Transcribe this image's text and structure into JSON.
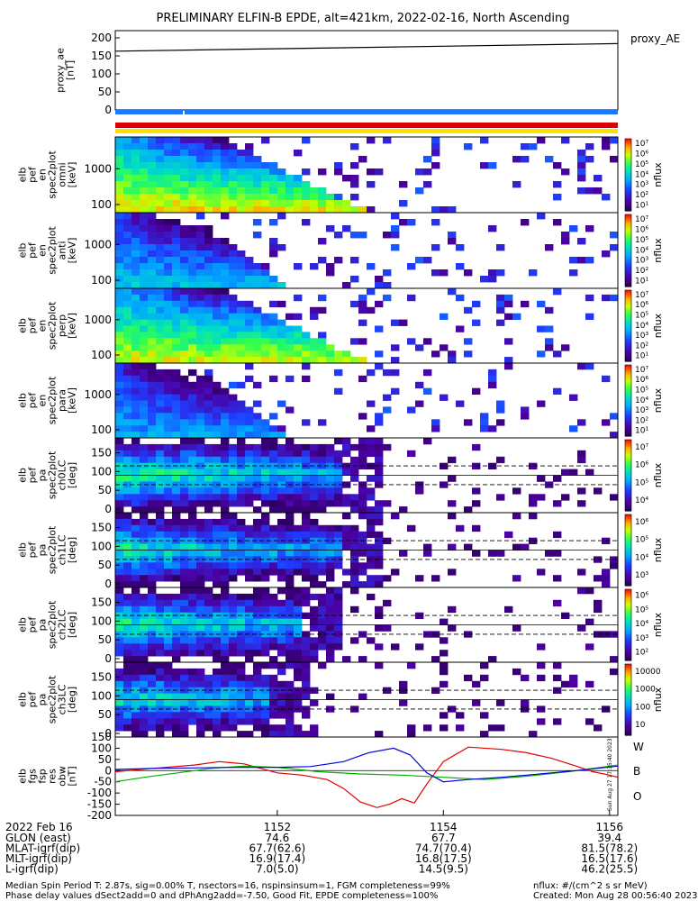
{
  "title": "PRELIMINARY ELFIN-B EPDE, alt=421km, 2022-02-16, North Ascending",
  "chart_data": [
    {
      "type": "line",
      "panel": "proxy_ae",
      "ylabel_lines": [
        "proxy_ae",
        "[nT]"
      ],
      "legend": "proxy_AE",
      "ylim": [
        0,
        200
      ],
      "yticks": [
        "200",
        "150",
        "100",
        "50",
        "0"
      ],
      "series": [
        {
          "name": "proxy_AE",
          "x": [
            0,
            1
          ],
          "values": [
            163,
            184
          ]
        }
      ]
    },
    {
      "type": "heatmap",
      "panel": "elb_pef_en_spec2plot_omni",
      "ylabel_lines": [
        "elb",
        "pef",
        "en",
        "spec2plot",
        "omni",
        "[keV]"
      ],
      "yscale": "log",
      "yticks": [
        "1000",
        "100"
      ],
      "colorbar_label": "nflux",
      "colorbar_ticks": [
        "10⁷",
        "10⁶",
        "10⁵",
        "10⁴",
        "10³",
        "10²",
        "10¹"
      ]
    },
    {
      "type": "heatmap",
      "panel": "elb_pef_en_spec2plot_anti",
      "ylabel_lines": [
        "elb",
        "pef",
        "en",
        "spec2plot",
        "anti",
        "[keV]"
      ],
      "yscale": "log",
      "yticks": [
        "1000",
        "100"
      ],
      "colorbar_label": "nflux",
      "colorbar_ticks": [
        "10⁷",
        "10⁶",
        "10⁵",
        "10⁴",
        "10³",
        "10²",
        "10¹"
      ]
    },
    {
      "type": "heatmap",
      "panel": "elb_pef_en_spec2plot_perp",
      "ylabel_lines": [
        "elb",
        "pef",
        "en",
        "spec2plot",
        "perp",
        "[keV]"
      ],
      "yscale": "log",
      "yticks": [
        "1000",
        "100"
      ],
      "colorbar_label": "nflux",
      "colorbar_ticks": [
        "10⁷",
        "10⁶",
        "10⁵",
        "10⁴",
        "10³",
        "10²",
        "10¹"
      ]
    },
    {
      "type": "heatmap",
      "panel": "elb_pef_en_spec2plot_para",
      "ylabel_lines": [
        "elb",
        "pef",
        "en",
        "spec2plot",
        "para",
        "[keV]"
      ],
      "yscale": "log",
      "yticks": [
        "1000",
        "100"
      ],
      "colorbar_label": "nflux",
      "colorbar_ticks": [
        "10⁷",
        "10⁶",
        "10⁵",
        "10⁴",
        "10³",
        "10²",
        "10¹"
      ]
    },
    {
      "type": "heatmap",
      "panel": "elb_pef_pa_spec2plot_ch0LC",
      "ylabel_lines": [
        "elb",
        "pef",
        "pa",
        "spec2plot",
        "ch0LC",
        "[deg]"
      ],
      "ylim": [
        0,
        180
      ],
      "yticks": [
        "150",
        "100",
        "50",
        "0"
      ],
      "colorbar_label": "nflux",
      "colorbar_ticks": [
        "10⁷",
        "10⁶",
        "10⁵",
        "10⁴"
      ]
    },
    {
      "type": "heatmap",
      "panel": "elb_pef_pa_spec2plot_ch1LC",
      "ylabel_lines": [
        "elb",
        "pef",
        "pa",
        "spec2plot",
        "ch1LC",
        "[deg]"
      ],
      "ylim": [
        0,
        180
      ],
      "yticks": [
        "150",
        "100",
        "50",
        "0"
      ],
      "colorbar_label": "nflux",
      "colorbar_ticks": [
        "10⁶",
        "10⁵",
        "10⁴",
        "10³"
      ]
    },
    {
      "type": "heatmap",
      "panel": "elb_pef_pa_spec2plot_ch2LC",
      "ylabel_lines": [
        "elb",
        "pef",
        "pa",
        "spec2plot",
        "ch2LC",
        "[deg]"
      ],
      "ylim": [
        0,
        180
      ],
      "yticks": [
        "150",
        "100",
        "50",
        "0"
      ],
      "colorbar_label": "nflux",
      "colorbar_ticks": [
        "10⁶",
        "10⁵",
        "10⁴",
        "10³",
        "10²"
      ]
    },
    {
      "type": "heatmap",
      "panel": "elb_pef_pa_spec2plot_ch3LC",
      "ylabel_lines": [
        "elb",
        "pef",
        "pa",
        "spec2plot",
        "ch3LC",
        "[deg]"
      ],
      "ylim": [
        0,
        180
      ],
      "yticks": [
        "150",
        "100",
        "50",
        "0"
      ],
      "colorbar_label": "nflux",
      "colorbar_ticks": [
        "10000",
        "1000",
        "100",
        "10"
      ]
    },
    {
      "type": "line",
      "panel": "elb_fgs_fsp_res_obw",
      "ylabel_lines": [
        "elb",
        "fgs",
        "fsp",
        "res",
        "obw",
        "[nT]"
      ],
      "ylim": [
        -200,
        150
      ],
      "yticks": [
        "150",
        "100",
        "50",
        "0",
        "-50",
        "-100",
        "-150",
        "-200"
      ],
      "legend": [
        "W",
        "B",
        "O"
      ],
      "series": [
        {
          "name": "W",
          "color": "#e00000",
          "x": [
            1150.05,
            1150.5,
            1151,
            1151.3,
            1151.6,
            1152,
            1152.3,
            1152.6,
            1152.8,
            1153.0,
            1153.2,
            1153.35,
            1153.5,
            1153.65,
            1153.8,
            1154.0,
            1154.3,
            1154.7,
            1155.0,
            1155.3,
            1155.6,
            1155.8,
            1156.0,
            1156.1
          ],
          "values": [
            -5,
            10,
            25,
            40,
            30,
            -10,
            -20,
            -40,
            -80,
            -140,
            -165,
            -150,
            -125,
            -145,
            -60,
            40,
            105,
            95,
            80,
            55,
            20,
            -5,
            -20,
            -30
          ]
        },
        {
          "name": "B",
          "color": "#00b000",
          "x": [
            1150.05,
            1150.4,
            1150.8,
            1151.2,
            1151.6,
            1152,
            1152.5,
            1153,
            1153.5,
            1154,
            1154.5,
            1155,
            1155.5,
            1155.8,
            1156.1
          ],
          "values": [
            -50,
            -30,
            -10,
            10,
            20,
            15,
            -5,
            -15,
            -20,
            -30,
            -40,
            -25,
            -5,
            10,
            25
          ]
        },
        {
          "name": "O",
          "color": "#0000e0",
          "x": [
            1150.05,
            1150.5,
            1151,
            1151.5,
            1152,
            1152.4,
            1152.8,
            1153.1,
            1153.4,
            1153.6,
            1153.8,
            1154.0,
            1154.3,
            1154.7,
            1155.0,
            1155.3,
            1155.6,
            1156.1
          ],
          "values": [
            5,
            10,
            12,
            15,
            15,
            18,
            40,
            80,
            100,
            70,
            -10,
            -50,
            -40,
            -30,
            -20,
            -10,
            0,
            20
          ]
        }
      ]
    }
  ],
  "xaxis": {
    "date": "2022 Feb 16",
    "ticks": [
      "1152",
      "1154",
      "1156"
    ],
    "rows": [
      {
        "label": "GLON (east)",
        "values": [
          "74.6",
          "67.7",
          "39.4"
        ]
      },
      {
        "label": "MLAT-igrf(dip)",
        "values": [
          "67.7(62.6)",
          "74.7(70.4)",
          "81.5(78.2)"
        ]
      },
      {
        "label": "MLT-igrf(dip)",
        "values": [
          "16.9(17.4)",
          "16.8(17.5)",
          "16.5(17.6)"
        ]
      },
      {
        "label": "L-igrf(dip)",
        "values": [
          "7.0(5.0)",
          "14.5(9.5)",
          "46.2(25.5)"
        ]
      }
    ]
  },
  "side_stamp": "Sun Aug 27 17:35:40 2023",
  "footer": {
    "line1": "Median Spin Period T: 2.87s, sig=0.00% T, nsectors=16, nspinsinsum=1, FGM completeness=99%",
    "line2": "Phase delay values dSect2add=0 and dPhAng2add=-7.50, Good Fit, EPDE completeness=100%",
    "units": "nflux: #/(cm^2 s sr MeV)",
    "created": "Created: Mon Aug 28 00:56:40 2023"
  }
}
